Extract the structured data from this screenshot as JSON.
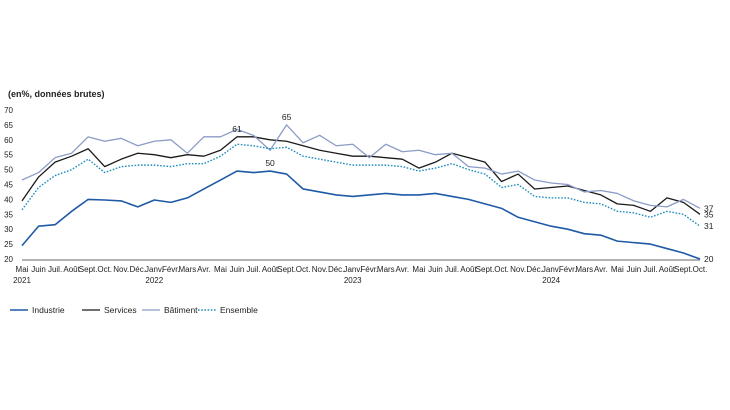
{
  "unit_label": "(en%, données brutes)",
  "chart_data": {
    "type": "line",
    "title": "",
    "ylabel": "",
    "xlabel": "",
    "ylim": [
      20,
      70
    ],
    "yticks": [
      20,
      25,
      30,
      35,
      40,
      45,
      50,
      55,
      60,
      65,
      70
    ],
    "grid": false,
    "legend_position": "bottom-left",
    "months": [
      "Mai",
      "Juin",
      "Juil.",
      "Août",
      "Sept.",
      "Oct.",
      "Nov.",
      "Déc.",
      "Janv.",
      "Févr.",
      "Mars",
      "Avr.",
      "Mai",
      "Juin",
      "Juil.",
      "Août",
      "Sept.",
      "Oct.",
      "Nov.",
      "Déc.",
      "Janv.",
      "Févr.",
      "Mars",
      "Avr.",
      "Mai",
      "Juin",
      "Juil.",
      "Août",
      "Sept.",
      "Oct.",
      "Nov.",
      "Déc.",
      "Janv.",
      "Févr.",
      "Mars",
      "Avr.",
      "Mai",
      "Juin",
      "Juil.",
      "Août",
      "Sept.",
      "Oct."
    ],
    "year_labels": [
      {
        "label": "2021",
        "month_index": 0
      },
      {
        "label": "2022",
        "month_index": 8
      },
      {
        "label": "2023",
        "month_index": 20
      },
      {
        "label": "2024",
        "month_index": 32
      }
    ],
    "series": [
      {
        "name": "Industrie",
        "color": "#1f5aa6",
        "style": "solid",
        "width": 1.6,
        "values": [
          24.5,
          31,
          31.5,
          36,
          40,
          39.8,
          39.5,
          37.5,
          39.8,
          39,
          40.5,
          43.5,
          46.5,
          49.5,
          49,
          49.5,
          48.5,
          43.5,
          42.5,
          41.5,
          41,
          41.5,
          42,
          41.5,
          41.5,
          42,
          41,
          40,
          38.5,
          37,
          34,
          32.5,
          31,
          30,
          28.5,
          28,
          26,
          25.5,
          25,
          23.5,
          22,
          20
        ]
      },
      {
        "name": "Services",
        "color": "#1a1a1a",
        "style": "solid",
        "width": 1.3,
        "values": [
          39.5,
          47.5,
          52.5,
          54.5,
          57,
          51,
          53.5,
          55.5,
          55,
          54,
          55,
          54.5,
          56.5,
          61,
          61,
          60,
          59.5,
          58,
          56.5,
          55.5,
          54.5,
          54.5,
          54,
          53.5,
          50.5,
          52.5,
          55.5,
          54,
          52.5,
          46,
          48.5,
          43.5,
          44,
          44.5,
          43,
          41.5,
          38.5,
          38,
          36,
          40.5,
          39,
          35
        ]
      },
      {
        "name": "Bâtiment",
        "color": "#8c9cc7",
        "style": "solid",
        "width": 1.3,
        "values": [
          46.5,
          49,
          54,
          55.5,
          61,
          59.5,
          60.5,
          58,
          59.5,
          60,
          55.5,
          61,
          61,
          63.5,
          61.5,
          56.5,
          65,
          59,
          61.5,
          58,
          58.5,
          54,
          58.5,
          56,
          56.5,
          55,
          55.5,
          51,
          50.5,
          48.5,
          49.5,
          46.5,
          45.5,
          45,
          42.5,
          43,
          42,
          39.5,
          38,
          37.5,
          40,
          37
        ]
      },
      {
        "name": "Ensemble",
        "color": "#1f8dbf",
        "style": "dotted",
        "width": 1.4,
        "values": [
          36.5,
          44,
          48,
          50,
          53.5,
          49,
          51,
          51.5,
          51.5,
          51,
          52,
          52,
          54.5,
          58.5,
          58,
          57,
          57.5,
          54.5,
          53.5,
          52.5,
          51.5,
          51.5,
          51.5,
          51,
          49.5,
          50.5,
          52,
          50,
          48.5,
          44,
          45,
          41,
          40.5,
          40.5,
          39,
          38.5,
          36,
          35.5,
          34,
          36,
          35,
          31
        ]
      }
    ],
    "annotations": [
      {
        "label": "61",
        "series": "Services",
        "month_index": 13
      },
      {
        "label": "65",
        "series": "Bâtiment",
        "month_index": 16
      },
      {
        "label": "50",
        "series": "Industrie",
        "month_index": 15
      },
      {
        "label": "37",
        "series": "Bâtiment",
        "month_index": 41,
        "side": "right"
      },
      {
        "label": "35",
        "series": "Services",
        "month_index": 41,
        "side": "right"
      },
      {
        "label": "31",
        "series": "Ensemble",
        "month_index": 41,
        "side": "right"
      },
      {
        "label": "20",
        "series": "Industrie",
        "month_index": 41,
        "side": "right"
      }
    ]
  }
}
